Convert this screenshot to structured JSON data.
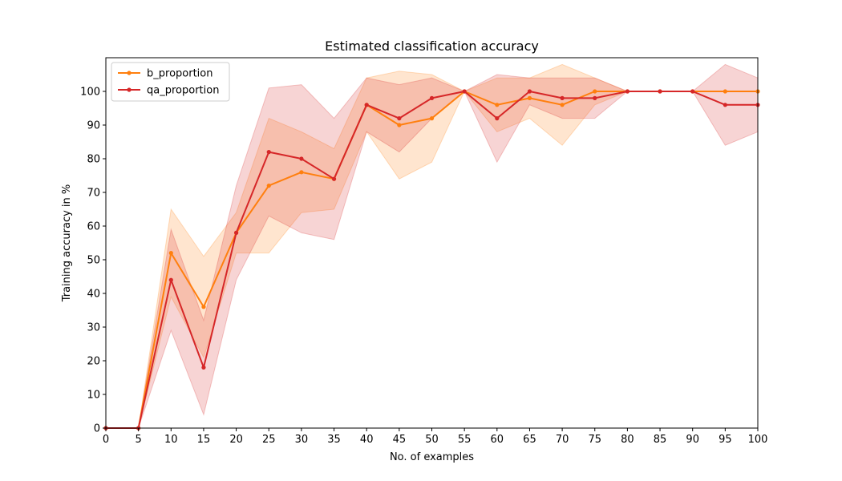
{
  "chart_data": {
    "type": "line",
    "title": "Estimated classification accuracy",
    "xlabel": "No. of examples",
    "ylabel": "Training accuracy in %",
    "xlim": [
      0,
      100
    ],
    "ylim": [
      0,
      110
    ],
    "xticks": [
      0,
      5,
      10,
      15,
      20,
      25,
      30,
      35,
      40,
      45,
      50,
      55,
      60,
      65,
      70,
      75,
      80,
      85,
      90,
      95,
      100
    ],
    "yticks": [
      0,
      10,
      20,
      30,
      40,
      50,
      60,
      70,
      80,
      90,
      100
    ],
    "grid": false,
    "legend_position": "top-left",
    "x": [
      0,
      5,
      10,
      15,
      20,
      25,
      30,
      35,
      40,
      45,
      50,
      55,
      60,
      65,
      70,
      75,
      80,
      85,
      90,
      95,
      100
    ],
    "series": [
      {
        "name": "b_proportion",
        "color": "#ff7f0e",
        "values": [
          0,
          0,
          52,
          36,
          58,
          72,
          76,
          74,
          96,
          90,
          92,
          100,
          96,
          98,
          96,
          100,
          100,
          100,
          100,
          100,
          100
        ],
        "band_lower": [
          0,
          0,
          39,
          21,
          52,
          52,
          64,
          65,
          88,
          74,
          79,
          100,
          88,
          92,
          84,
          96,
          100,
          100,
          100,
          100,
          100
        ],
        "band_upper": [
          0,
          0,
          65,
          51,
          64,
          92,
          88,
          83,
          104,
          106,
          105,
          100,
          104,
          104,
          108,
          104,
          100,
          100,
          100,
          100,
          100
        ]
      },
      {
        "name": "qa_proportion",
        "color": "#d62728",
        "values": [
          0,
          0,
          44,
          18,
          58,
          82,
          80,
          74,
          96,
          92,
          98,
          100,
          92,
          100,
          98,
          98,
          100,
          100,
          100,
          96,
          96
        ],
        "band_lower": [
          0,
          0,
          29,
          4,
          44,
          63,
          58,
          56,
          88,
          82,
          92,
          100,
          79,
          96,
          92,
          92,
          100,
          100,
          100,
          84,
          88
        ],
        "band_upper": [
          0,
          0,
          59,
          32,
          72,
          101,
          102,
          92,
          104,
          102,
          104,
          100,
          105,
          104,
          104,
          104,
          100,
          100,
          100,
          108,
          104
        ]
      }
    ]
  }
}
